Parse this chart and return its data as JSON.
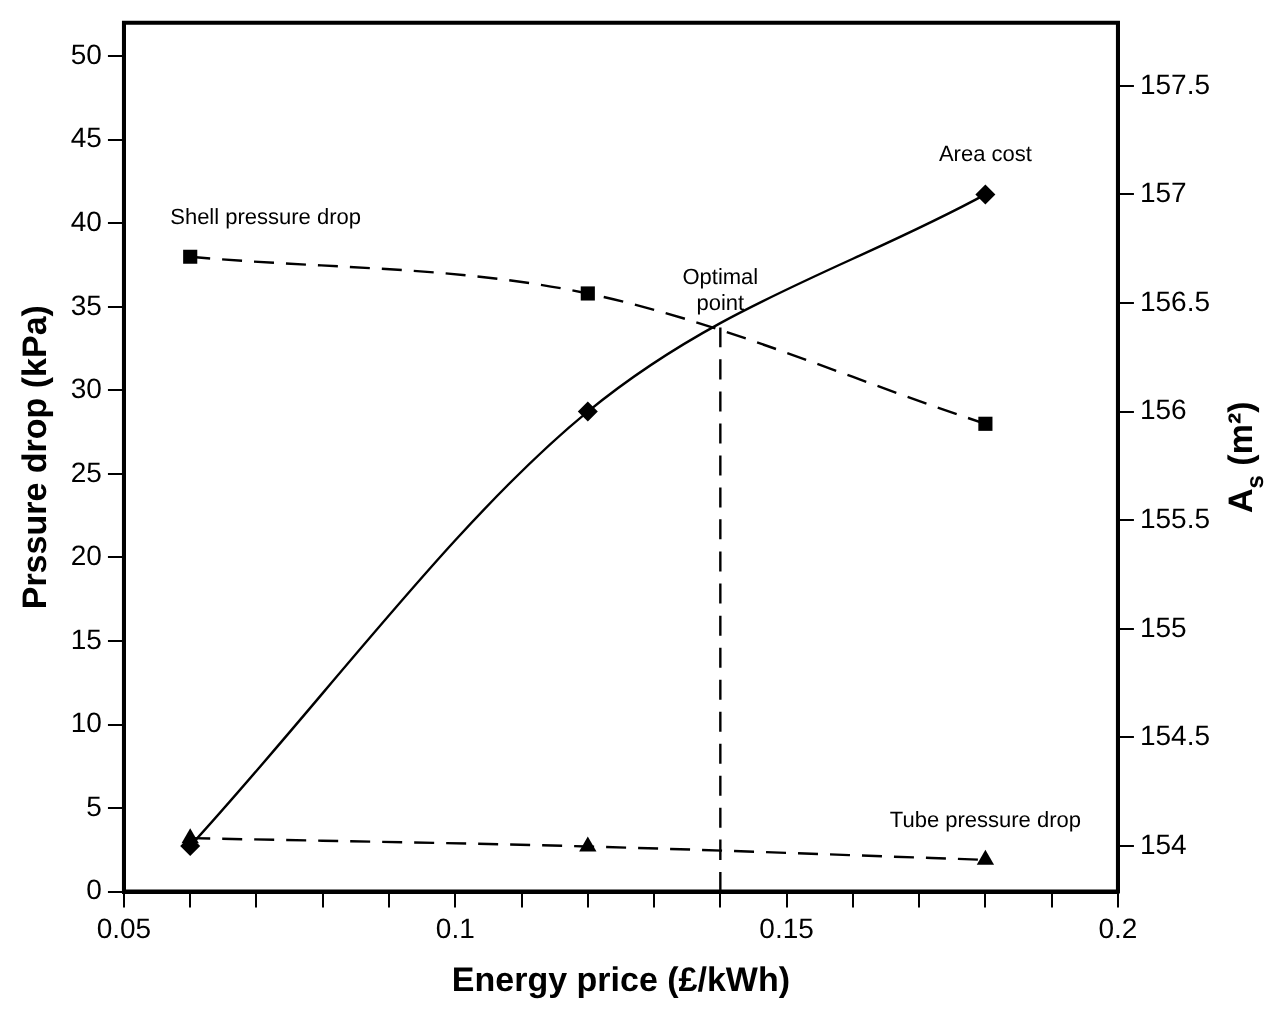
{
  "chart_data": {
    "type": "line",
    "xlabel": "Energy price (£/kWh)",
    "ylabel": "Prssure drop (kPa)",
    "y2label": "A$_{s}$ (m²)",
    "xlim": [
      0.05,
      0.2
    ],
    "xticks": [
      0.05,
      {
        "value": 0.06,
        "label": null
      },
      {
        "value": 0.07,
        "label": null
      },
      {
        "value": 0.08,
        "label": null
      },
      {
        "value": 0.09,
        "label": null
      },
      0.1,
      {
        "value": 0.11,
        "label": null
      },
      {
        "value": 0.12,
        "label": null
      },
      {
        "value": 0.13,
        "label": null
      },
      {
        "value": 0.14,
        "label": null
      },
      0.15,
      {
        "value": 0.16,
        "label": null
      },
      {
        "value": 0.17,
        "label": null
      },
      {
        "value": 0.18,
        "label": null
      },
      {
        "value": 0.19,
        "label": null
      },
      0.2
    ],
    "ylim": [
      0,
      52
    ],
    "yticks": [
      0,
      5,
      10,
      15,
      20,
      25,
      30,
      35,
      40,
      45,
      50
    ],
    "y2lim": [
      153.79,
      157.79
    ],
    "y2ticks": [
      154,
      154.5,
      155,
      155.5,
      156,
      156.5,
      157,
      157.5
    ],
    "grid": false,
    "legend": false,
    "series": [
      {
        "name": "Shell pressure drop",
        "color": "#000000",
        "x": [
          0.06,
          0.12,
          0.18
        ],
        "values": [
          38,
          35.8,
          28
        ],
        "marker": "square",
        "line_style": "dashed"
      },
      {
        "name": "Area cost",
        "color": "#000000",
        "x": [
          0.06,
          0.12,
          0.18
        ],
        "values": [
          154,
          156,
          157
        ],
        "axis": "y2",
        "marker": "diamond",
        "line_style": "solid"
      },
      {
        "name": "Tube pressure drop",
        "color": "#000000",
        "x": [
          0.06,
          0.12,
          0.18
        ],
        "values": [
          3.2,
          2.7,
          1.9
        ],
        "marker": "triangle",
        "line_style": "dashed"
      },
      {
        "color": "#000000",
        "x": [
          0.14,
          0.14
        ],
        "values": [
          0,
          33.8
        ],
        "marker": "none",
        "line_style": "dashed"
      }
    ],
    "annotations": [
      {
        "text": "Optimal point",
        "x": 0.14,
        "y": 33.8
      }
    ]
  }
}
